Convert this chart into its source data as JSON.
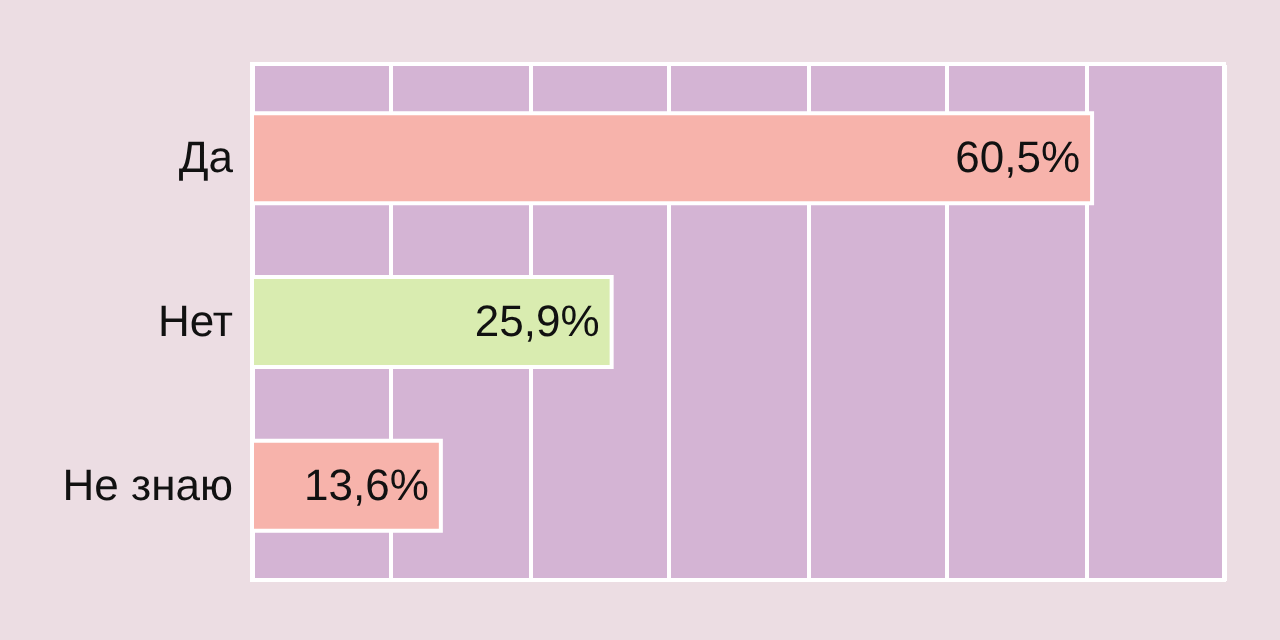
{
  "chart_data": {
    "type": "bar",
    "orientation": "horizontal",
    "categories": [
      "Да",
      "Нет",
      "Не знаю"
    ],
    "values": [
      60.5,
      25.9,
      13.6
    ],
    "colors": [
      "#f7b3ab",
      "#d9ecb0",
      "#f7b3ab"
    ],
    "value_labels": [
      "60,5%",
      "25,9%",
      "13,6%"
    ],
    "xlim": [
      0,
      70
    ],
    "xticks": [
      {
        "value": 0,
        "label": null
      },
      {
        "value": 10,
        "label": null
      },
      {
        "value": 20,
        "label": null
      },
      {
        "value": 30,
        "label": null
      },
      {
        "value": 40,
        "label": null
      },
      {
        "value": 50,
        "label": null
      },
      {
        "value": 60,
        "label": null
      },
      {
        "value": 70,
        "label": null
      }
    ],
    "tick_labels": false,
    "grid": "x"
  }
}
